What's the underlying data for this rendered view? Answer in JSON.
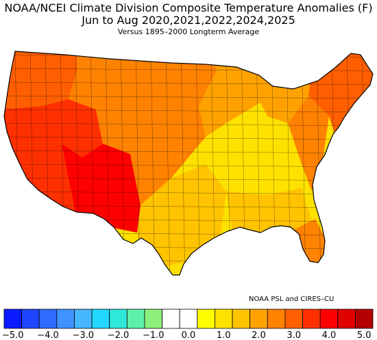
{
  "title": {
    "line1": "NOAA/NCEI Climate Division Composite Temperature Anomalies (F)",
    "line2": "Jun to Aug  2020,2021,2022,2024,2025",
    "line3": "Versus 1895–2000 Longterm Average"
  },
  "credit": "NOAA PSL and CIRES–CU",
  "legend": {
    "colors": [
      "#0a1cff",
      "#1e46ff",
      "#2e6cff",
      "#3f92ff",
      "#46b6ff",
      "#22d8ff",
      "#2ee8d8",
      "#5cf0a8",
      "#8cf07a",
      "#ffffff",
      "#ffffff",
      "#ffff00",
      "#ffe100",
      "#ffc300",
      "#ffa200",
      "#ff8200",
      "#ff5f00",
      "#ff3000",
      "#ff0000",
      "#e00000",
      "#b40000"
    ],
    "tick_labels": [
      "−5.0",
      "−4.0",
      "−3.0",
      "−2.0",
      "−1.0",
      "0.0",
      "1.0",
      "2.0",
      "3.0",
      "4.0",
      "5.0"
    ]
  },
  "map": {
    "region": "contiguous-us-climate-divisions",
    "regions": [
      {
        "name": "northwest-coast",
        "color": "#ff5f00"
      },
      {
        "name": "california-nevada",
        "color": "#ff3000"
      },
      {
        "name": "great-basin",
        "color": "#ff3000"
      },
      {
        "name": "southwest-desert",
        "color": "#ff0000"
      },
      {
        "name": "northern-rockies-plains",
        "color": "#ff8200"
      },
      {
        "name": "colorado-new-mexico",
        "color": "#ff8200"
      },
      {
        "name": "southern-plains-texas",
        "color": "#ffc300"
      },
      {
        "name": "upper-midwest",
        "color": "#ffa200"
      },
      {
        "name": "central-midwest-south",
        "color": "#ffe100"
      },
      {
        "name": "great-lakes",
        "color": "#ffa200"
      },
      {
        "name": "southeast-gulf",
        "color": "#ffc300"
      },
      {
        "name": "florida",
        "color": "#ff8200"
      },
      {
        "name": "mid-atlantic",
        "color": "#ff8200"
      },
      {
        "name": "northeast-new-england",
        "color": "#ff5f00"
      }
    ]
  }
}
